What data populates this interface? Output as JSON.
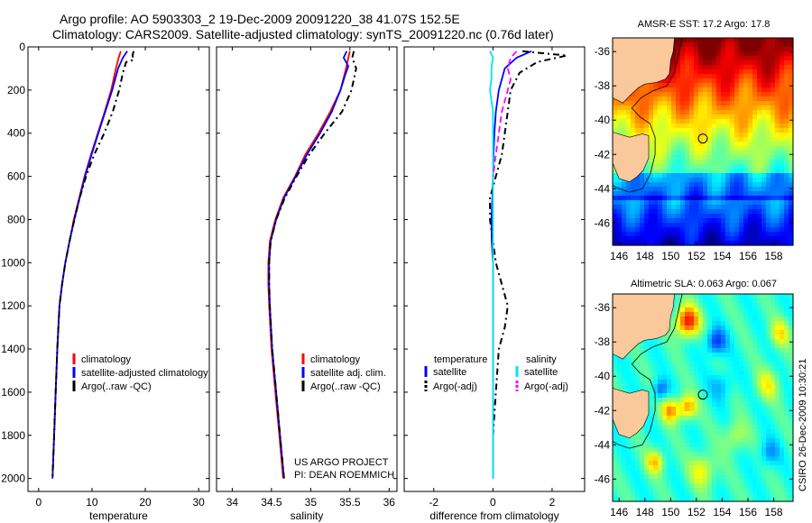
{
  "header": {
    "title_line1": "Argo profile: AO 5903303_2 19-Dec-2009 20091220_38 41.07S 152.5E",
    "title_line2": "Climatology: CARS2009. Satellite-adjusted climatology: synTS_20091220.nc (0.76d later)"
  },
  "side_label": "CSIRO 26-Dec-2009 10:30:21",
  "chart_data": [
    {
      "id": "temperature",
      "type": "line",
      "xlabel": "temperature",
      "xlim": [
        -2,
        32
      ],
      "ylim": [
        0,
        2060
      ],
      "xticks": [
        0,
        10,
        20,
        30
      ],
      "yticks": [
        0,
        200,
        400,
        600,
        800,
        1000,
        1200,
        1400,
        1600,
        1800,
        2000
      ],
      "series": [
        {
          "name": "climatology",
          "color": "#ff0000",
          "dash": "",
          "points": [
            [
              15.4,
              20
            ],
            [
              15.0,
              50
            ],
            [
              14.5,
              100
            ],
            [
              13.6,
              200
            ],
            [
              12.4,
              300
            ],
            [
              11.1,
              400
            ],
            [
              9.8,
              500
            ],
            [
              8.6,
              600
            ],
            [
              7.6,
              700
            ],
            [
              6.6,
              800
            ],
            [
              5.8,
              900
            ],
            [
              5.0,
              1000
            ],
            [
              4.4,
              1100
            ],
            [
              3.9,
              1200
            ],
            [
              3.5,
              1400
            ],
            [
              3.2,
              1600
            ],
            [
              2.9,
              1800
            ],
            [
              2.6,
              2000
            ]
          ]
        },
        {
          "name": "satellite-adjusted climatology",
          "color": "#0000ff",
          "dash": "",
          "points": [
            [
              16.6,
              20
            ],
            [
              15.8,
              50
            ],
            [
              14.9,
              100
            ],
            [
              13.8,
              200
            ],
            [
              12.5,
              300
            ],
            [
              11.2,
              400
            ],
            [
              9.9,
              500
            ],
            [
              8.7,
              600
            ],
            [
              7.7,
              700
            ],
            [
              6.7,
              800
            ],
            [
              5.8,
              900
            ],
            [
              5.0,
              1000
            ],
            [
              4.4,
              1100
            ],
            [
              3.9,
              1200
            ],
            [
              3.5,
              1400
            ],
            [
              3.2,
              1600
            ],
            [
              2.9,
              1800
            ],
            [
              2.6,
              2000
            ]
          ]
        },
        {
          "name": "Argo(..raw -QC)",
          "color": "#000000",
          "dash": "7,4,2,4",
          "points": [
            [
              17.8,
              20
            ],
            [
              17.6,
              40
            ],
            [
              17.8,
              60
            ],
            [
              16.4,
              70
            ],
            [
              15.8,
              120
            ],
            [
              15.1,
              200
            ],
            [
              13.9,
              300
            ],
            [
              12.3,
              400
            ],
            [
              10.4,
              500
            ],
            [
              8.9,
              600
            ],
            [
              7.7,
              700
            ],
            [
              6.7,
              800
            ],
            [
              5.8,
              900
            ],
            [
              5.0,
              1000
            ],
            [
              4.4,
              1100
            ],
            [
              3.9,
              1200
            ],
            [
              3.5,
              1400
            ],
            [
              3.2,
              1600
            ],
            [
              2.9,
              1800
            ],
            [
              2.6,
              2000
            ]
          ]
        }
      ],
      "legend": [
        "climatology",
        "satellite-adjusted climatology",
        "Argo(..raw -QC)"
      ]
    },
    {
      "id": "salinity",
      "type": "line",
      "xlabel": "salinity",
      "xlim": [
        33.8,
        36.1
      ],
      "ylim": [
        0,
        2060
      ],
      "xticks": [
        34,
        34.5,
        35,
        35.5,
        36
      ],
      "yticks": [
        0,
        200,
        400,
        600,
        800,
        1000,
        1200,
        1400,
        1600,
        1800,
        2000
      ],
      "series": [
        {
          "name": "climatology",
          "color": "#ff0000",
          "dash": "",
          "points": [
            [
              35.5,
              20
            ],
            [
              35.48,
              50
            ],
            [
              35.45,
              100
            ],
            [
              35.38,
              200
            ],
            [
              35.25,
              300
            ],
            [
              35.1,
              400
            ],
            [
              34.93,
              500
            ],
            [
              34.8,
              600
            ],
            [
              34.65,
              700
            ],
            [
              34.55,
              800
            ],
            [
              34.48,
              900
            ],
            [
              34.46,
              1000
            ],
            [
              34.46,
              1100
            ],
            [
              34.47,
              1200
            ],
            [
              34.5,
              1400
            ],
            [
              34.55,
              1600
            ],
            [
              34.6,
              1800
            ],
            [
              34.65,
              2000
            ]
          ]
        },
        {
          "name": "satellite adj. clim.",
          "color": "#0000ff",
          "dash": "",
          "points": [
            [
              35.46,
              20
            ],
            [
              35.42,
              50
            ],
            [
              35.48,
              90
            ],
            [
              35.44,
              130
            ],
            [
              35.38,
              200
            ],
            [
              35.27,
              300
            ],
            [
              35.12,
              400
            ],
            [
              34.95,
              500
            ],
            [
              34.81,
              600
            ],
            [
              34.66,
              700
            ],
            [
              34.56,
              800
            ],
            [
              34.49,
              900
            ],
            [
              34.47,
              1000
            ],
            [
              34.47,
              1100
            ],
            [
              34.48,
              1200
            ],
            [
              34.51,
              1400
            ],
            [
              34.56,
              1600
            ],
            [
              34.61,
              1800
            ],
            [
              34.66,
              2000
            ]
          ]
        },
        {
          "name": "Argo(..raw -QC)",
          "color": "#000000",
          "dash": "7,4,2,4",
          "points": [
            [
              35.55,
              20
            ],
            [
              35.53,
              50
            ],
            [
              35.58,
              100
            ],
            [
              35.52,
              200
            ],
            [
              35.4,
              300
            ],
            [
              35.18,
              400
            ],
            [
              34.98,
              500
            ],
            [
              34.82,
              600
            ],
            [
              34.67,
              700
            ],
            [
              34.56,
              800
            ],
            [
              34.49,
              900
            ],
            [
              34.47,
              1000
            ],
            [
              34.47,
              1100
            ],
            [
              34.48,
              1200
            ],
            [
              34.51,
              1400
            ],
            [
              34.56,
              1600
            ],
            [
              34.61,
              1800
            ],
            [
              34.66,
              2000
            ]
          ]
        }
      ],
      "legend": [
        "climatology",
        "satellite adj. clim.",
        "Argo(..raw -QC)"
      ]
    },
    {
      "id": "difference",
      "type": "line",
      "xlabel": "difference from climatology",
      "xlim": [
        -3,
        3.1
      ],
      "ylim": [
        0,
        2060
      ],
      "xticks": [
        -2,
        0,
        2
      ],
      "yticks": [
        0,
        200,
        400,
        600,
        800,
        1000,
        1200,
        1400,
        1600,
        1800,
        2000
      ],
      "legend_groups": [
        {
          "heading": "temperature",
          "items": [
            {
              "name": "satellite",
              "color": "#0000ff",
              "dash": ""
            },
            {
              "name": "Argo(-adj)",
              "color": "#000000",
              "dash": "7,4,2,4"
            }
          ]
        },
        {
          "heading": "salinity",
          "items": [
            {
              "name": "satellite",
              "color": "#00e5ee",
              "dash": ""
            },
            {
              "name": "Argo(-adj)",
              "color": "#ff00ff",
              "dash": "7,4"
            }
          ]
        }
      ],
      "series": [
        {
          "name": "temperature satellite",
          "color": "#0000ff",
          "dash": "",
          "points": [
            [
              1.3,
              20
            ],
            [
              0.8,
              50
            ],
            [
              0.4,
              100
            ],
            [
              0.2,
              200
            ],
            [
              0.1,
              300
            ],
            [
              0.05,
              400
            ],
            [
              0.02,
              500
            ],
            [
              0.0,
              600
            ],
            [
              -0.02,
              700
            ],
            [
              -0.05,
              800
            ],
            [
              -0.04,
              900
            ],
            [
              0.0,
              1000
            ],
            [
              0.0,
              1200
            ],
            [
              0.0,
              1400
            ],
            [
              0.0,
              1600
            ],
            [
              0.0,
              1800
            ],
            [
              0.0,
              2000
            ]
          ]
        },
        {
          "name": "temperature Argo(-adj)",
          "color": "#000000",
          "dash": "7,4,2,4",
          "points": [
            [
              1.0,
              20
            ],
            [
              2.5,
              40
            ],
            [
              1.5,
              70
            ],
            [
              0.9,
              120
            ],
            [
              0.6,
              200
            ],
            [
              0.5,
              300
            ],
            [
              0.4,
              400
            ],
            [
              0.3,
              500
            ],
            [
              0.1,
              600
            ],
            [
              -0.1,
              700
            ],
            [
              -0.1,
              800
            ],
            [
              0.0,
              900
            ],
            [
              0.1,
              1000
            ],
            [
              0.3,
              1100
            ],
            [
              0.5,
              1200
            ],
            [
              0.4,
              1300
            ],
            [
              0.2,
              1400
            ],
            [
              0.1,
              1600
            ],
            [
              0.0,
              1800
            ]
          ]
        },
        {
          "name": "salinity satellite",
          "color": "#00e5ee",
          "dash": "",
          "points": [
            [
              -0.1,
              20
            ],
            [
              0.0,
              50
            ],
            [
              -0.05,
              100
            ],
            [
              -0.05,
              150
            ],
            [
              -0.1,
              200
            ],
            [
              0.0,
              300
            ],
            [
              0.0,
              400
            ],
            [
              0.0,
              600
            ],
            [
              0.0,
              800
            ],
            [
              0.0,
              1000
            ],
            [
              0.0,
              1400
            ],
            [
              0.0,
              1800
            ],
            [
              0.0,
              2000
            ]
          ]
        },
        {
          "name": "salinity Argo(-adj)",
          "color": "#ff00ff",
          "dash": "7,4",
          "points": [
            [
              0.8,
              20
            ],
            [
              0.6,
              50
            ],
            [
              0.5,
              100
            ],
            [
              0.6,
              150
            ],
            [
              0.5,
              200
            ],
            [
              0.3,
              300
            ],
            [
              0.2,
              400
            ],
            [
              0.1,
              500
            ],
            [
              0.0,
              600
            ]
          ]
        }
      ]
    }
  ],
  "credit": {
    "line1": "US ARGO PROJECT",
    "line2": "PI: DEAN ROEMMICH"
  },
  "maps": [
    {
      "id": "sst",
      "title": "AMSR-E SST: 17.2 Argo: 17.8",
      "type": "heatmap",
      "xticks": [
        146,
        148,
        150,
        152,
        154,
        156,
        158
      ],
      "yticks": [
        -36,
        -38,
        -40,
        -42,
        -44,
        -46
      ],
      "xlim": [
        145.5,
        159.5
      ],
      "ylim": [
        -47.3,
        -35.2
      ],
      "marker": [
        152.5,
        -41.07
      ],
      "land_color": "#f9c89b"
    },
    {
      "id": "sla",
      "title": "Altimetric SLA: 0.063 Argo: 0.067",
      "type": "heatmap",
      "xticks": [
        146,
        148,
        150,
        152,
        154,
        156,
        158
      ],
      "yticks": [
        -36,
        -38,
        -40,
        -42,
        -44,
        -46
      ],
      "xlim": [
        145.5,
        159.5
      ],
      "ylim": [
        -47.3,
        -35.2
      ],
      "marker": [
        152.5,
        -41.07
      ],
      "land_color": "#f9c89b"
    }
  ]
}
